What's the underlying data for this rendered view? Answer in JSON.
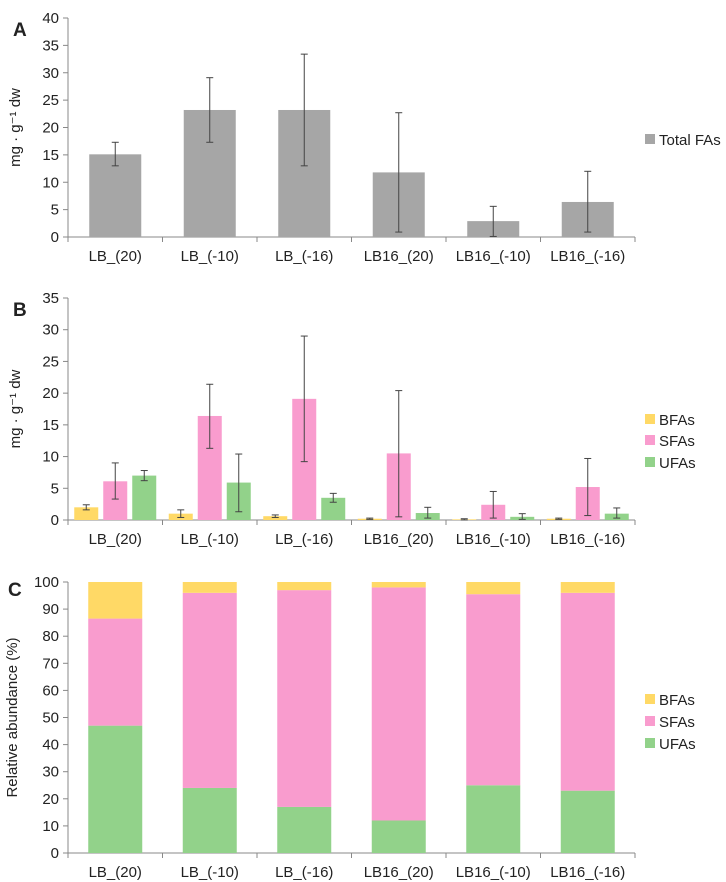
{
  "colors": {
    "total": "#a6a6a6",
    "bfa": "#ffd966",
    "sfa": "#f99cce",
    "ufa": "#92d28a",
    "axis": "#888888",
    "error": "#444444"
  },
  "chart_data": [
    {
      "panel_label": "A",
      "type": "bar",
      "ylabel": "mg · g⁻¹ dw",
      "ylim": [
        0,
        40
      ],
      "yticks": [
        0,
        5,
        10,
        15,
        20,
        25,
        30,
        35,
        40
      ],
      "categories": [
        "LB_(20)",
        "LB_(-10)",
        "LB_(-16)",
        "LB16_(20)",
        "LB16_(-10)",
        "LB16_(-16)"
      ],
      "legend_position": "right",
      "series": [
        {
          "name": "Total FAs",
          "color_key": "total",
          "values": [
            15.1,
            23.2,
            23.2,
            11.8,
            2.9,
            6.4
          ],
          "err_low": [
            13.0,
            17.3,
            13.0,
            0.9,
            0.1,
            0.9
          ],
          "err_high": [
            17.3,
            29.1,
            33.4,
            22.7,
            5.6,
            12.0
          ]
        }
      ]
    },
    {
      "panel_label": "B",
      "type": "bar",
      "ylabel": "mg · g⁻¹ dw",
      "ylim": [
        0,
        35
      ],
      "yticks": [
        0,
        5,
        10,
        15,
        20,
        25,
        30,
        35
      ],
      "categories": [
        "LB_(20)",
        "LB_(-10)",
        "LB_(-16)",
        "LB16_(20)",
        "LB16_(-10)",
        "LB16_(-16)"
      ],
      "legend_position": "right",
      "series": [
        {
          "name": "BFAs",
          "color_key": "bfa",
          "values": [
            2.0,
            1.0,
            0.6,
            0.2,
            0.1,
            0.2
          ],
          "err_low": [
            1.6,
            0.4,
            0.4,
            0.1,
            0.0,
            0.1
          ],
          "err_high": [
            2.4,
            1.6,
            0.8,
            0.3,
            0.2,
            0.3
          ]
        },
        {
          "name": "SFAs",
          "color_key": "sfa",
          "values": [
            6.1,
            16.4,
            19.1,
            10.5,
            2.4,
            5.2
          ],
          "err_low": [
            3.3,
            11.3,
            9.2,
            0.5,
            0.3,
            0.7
          ],
          "err_high": [
            9.0,
            21.4,
            29.0,
            20.4,
            4.5,
            9.7
          ]
        },
        {
          "name": "UFAs",
          "color_key": "ufa",
          "values": [
            7.0,
            5.9,
            3.5,
            1.1,
            0.5,
            1.0
          ],
          "err_low": [
            6.2,
            1.3,
            2.8,
            0.3,
            0.1,
            0.3
          ],
          "err_high": [
            7.8,
            10.4,
            4.2,
            2.0,
            1.0,
            1.9
          ]
        }
      ]
    },
    {
      "panel_label": "C",
      "type": "stacked_bar",
      "ylabel": "Relative abundance (%)",
      "ylim": [
        0,
        100
      ],
      "yticks": [
        0,
        10,
        20,
        30,
        40,
        50,
        60,
        70,
        80,
        90,
        100
      ],
      "categories": [
        "LB_(20)",
        "LB_(-10)",
        "LB_(-16)",
        "LB16_(20)",
        "LB16_(-10)",
        "LB16_(-16)"
      ],
      "legend_position": "right",
      "series": [
        {
          "name": "UFAs",
          "color_key": "ufa",
          "values": [
            47,
            24,
            17,
            12,
            25,
            23
          ]
        },
        {
          "name": "SFAs",
          "color_key": "sfa",
          "values": [
            39.5,
            72,
            80,
            86,
            70.5,
            73
          ]
        },
        {
          "name": "BFAs",
          "color_key": "bfa",
          "values": [
            13.5,
            4,
            3,
            2,
            4.5,
            4
          ]
        }
      ],
      "legend_order": [
        "BFAs",
        "SFAs",
        "UFAs"
      ]
    }
  ]
}
